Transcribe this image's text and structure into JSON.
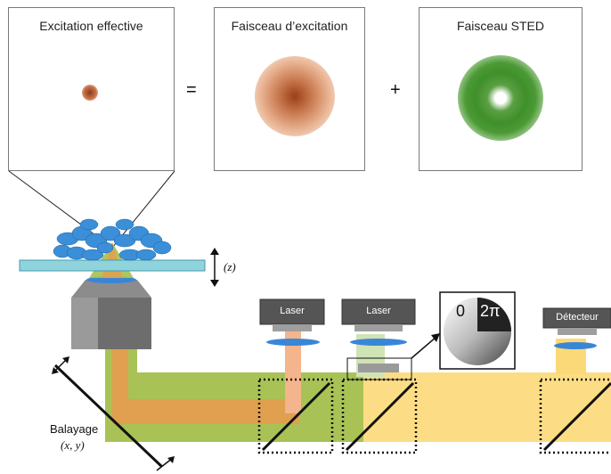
{
  "panels": {
    "effective": {
      "title": "Excitation effective"
    },
    "excitation": {
      "title": "Faisceau d’excitation"
    },
    "sted": {
      "title": "Faisceau STED"
    }
  },
  "operators": {
    "equals": "=",
    "plus": "+"
  },
  "components": {
    "laser1": "Laser",
    "laser2": "Laser",
    "detector": "Détecteur"
  },
  "phase_plate": {
    "zero": "0",
    "two_pi": "2π"
  },
  "labels": {
    "z_axis": "(z)",
    "scan_word": "Balayage",
    "scan_axes": "(x, y)"
  },
  "colors": {
    "excitation": "#b5522a",
    "sted": "#3f8f2b",
    "detection": "#fcd978",
    "combined": "#a8c256"
  }
}
